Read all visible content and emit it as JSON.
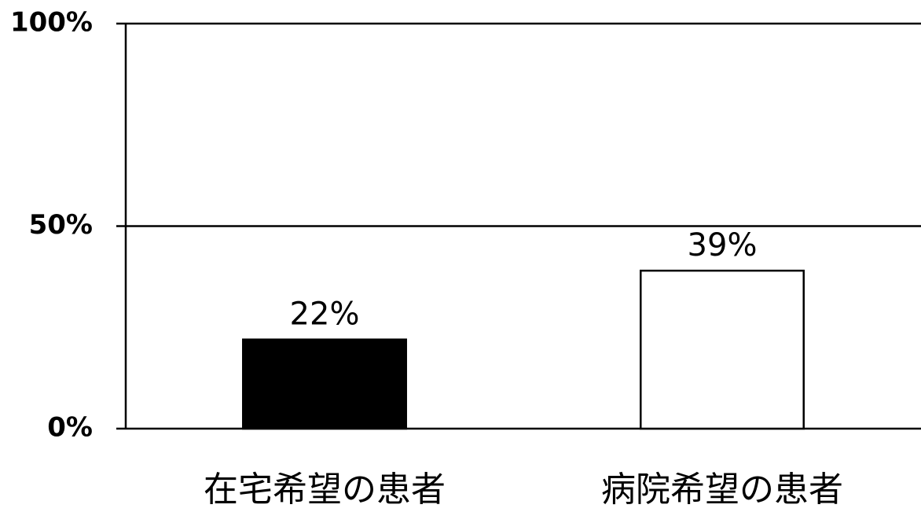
{
  "chart_data": {
    "type": "bar",
    "categories": [
      "在宅希望の患者",
      "病院希望の患者"
    ],
    "values": [
      22,
      39
    ],
    "value_labels": [
      "22%",
      "39%"
    ],
    "colors": [
      "#000000",
      "#ffffff"
    ],
    "ylim": [
      0,
      100
    ],
    "yticks": [
      {
        "value": 0,
        "label": "0%"
      },
      {
        "value": 50,
        "label": "50%"
      },
      {
        "value": 100,
        "label": "100%"
      }
    ],
    "grid": true
  }
}
